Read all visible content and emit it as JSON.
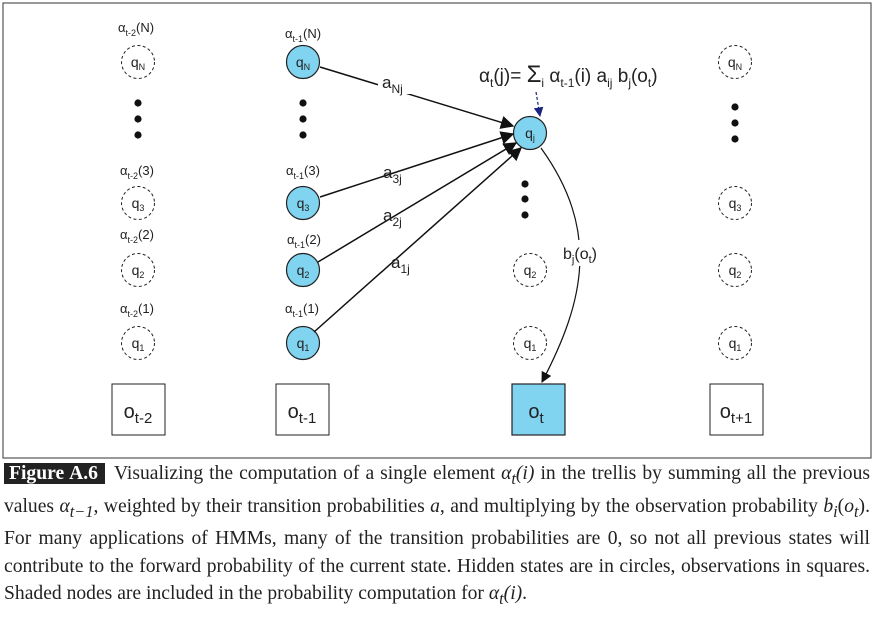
{
  "diagram": {
    "formula": {
      "alpha_t_j": "α",
      "t_sub": "t",
      "j_arg": "(j)= ",
      "sum": "Σ",
      "sum_sub": "i",
      "alpha_prev": " α",
      "prev_sub": "t-1",
      "prev_arg": "(i) a",
      "a_sub": "ij",
      "b": " b",
      "b_sub": "j",
      "o_open": "(o",
      "o_sub": "t",
      "o_close": ")"
    },
    "columns": [
      {
        "id": "t-2",
        "alpha_labels": [
          {
            "a": "α",
            "sub": "t-2",
            "arg": "(N)"
          },
          {
            "a": "α",
            "sub": "t-2",
            "arg": "(3)"
          },
          {
            "a": "α",
            "sub": "t-2",
            "arg": "(2)"
          },
          {
            "a": "α",
            "sub": "t-2",
            "arg": "(1)"
          }
        ],
        "states": [
          {
            "q": "q",
            "sub": "N"
          },
          {
            "q": "q",
            "sub": "3"
          },
          {
            "q": "q",
            "sub": "2"
          },
          {
            "q": "q",
            "sub": "1"
          }
        ],
        "observation": {
          "o": "o",
          "sub": "t-2"
        }
      },
      {
        "id": "t-1",
        "alpha_labels": [
          {
            "a": "α",
            "sub": "t-1",
            "arg": "(N)"
          },
          {
            "a": "α",
            "sub": "t-1",
            "arg": "(3)"
          },
          {
            "a": "α",
            "sub": "t-1",
            "arg": "(2)"
          },
          {
            "a": "α",
            "sub": "t-1",
            "arg": "(1)"
          }
        ],
        "states": [
          {
            "q": "q",
            "sub": "N"
          },
          {
            "q": "q",
            "sub": "3"
          },
          {
            "q": "q",
            "sub": "2"
          },
          {
            "q": "q",
            "sub": "1"
          }
        ],
        "observation": {
          "o": "o",
          "sub": "t-1"
        }
      },
      {
        "id": "t",
        "states": [
          {
            "q": "q",
            "sub": "j"
          },
          {
            "q": "q",
            "sub": "2"
          },
          {
            "q": "q",
            "sub": "1"
          }
        ],
        "observation": {
          "o": "o",
          "sub": "t"
        }
      },
      {
        "id": "t+1",
        "states": [
          {
            "q": "q",
            "sub": "N"
          },
          {
            "q": "q",
            "sub": "3"
          },
          {
            "q": "q",
            "sub": "2"
          },
          {
            "q": "q",
            "sub": "1"
          }
        ],
        "observation": {
          "o": "o",
          "sub": "t+1"
        }
      }
    ],
    "transitions": [
      {
        "a": "a",
        "sub": "Nj"
      },
      {
        "a": "a",
        "sub": "3j"
      },
      {
        "a": "a",
        "sub": "2j"
      },
      {
        "a": "a",
        "sub": "1j"
      }
    ],
    "emission": {
      "b": "b",
      "b_sub": "j",
      "o_open": "(o",
      "o_sub": "t",
      "o_close": ")"
    },
    "colors": {
      "shaded_fill": "#80d4f0",
      "node_stroke": "#222222",
      "dashed_stroke": "#222222",
      "formula_pointer": "#1a237e",
      "frame": "#555555"
    }
  },
  "caption": {
    "label": "Figure A.6",
    "p1": "Visualizing the computation of a single element ",
    "alpha1": "α",
    "alpha1_sub": "t",
    "alpha1_arg": "(i)",
    "p2": " in the trellis by summing all the previous values ",
    "alpha2": "α",
    "alpha2_sub": "t−1",
    "p3": ", weighted by their transition probabilities ",
    "a_var": "a",
    "p4": ", and multiplying by the observation probability ",
    "b_var": "b",
    "b_sub": "i",
    "b_arg_open": "(",
    "o_var": "o",
    "o_sub": "t",
    "b_arg_close": ")",
    "p5": ". For many applications of HMMs, many of the transition probabilities are 0, so not all previous states will contribute to the forward probability of the current state. Hidden states are in circles, observations in squares. Shaded nodes are included in the probability computation for ",
    "alpha3": "α",
    "alpha3_sub": "t",
    "alpha3_arg": "(i)",
    "p6": "."
  }
}
